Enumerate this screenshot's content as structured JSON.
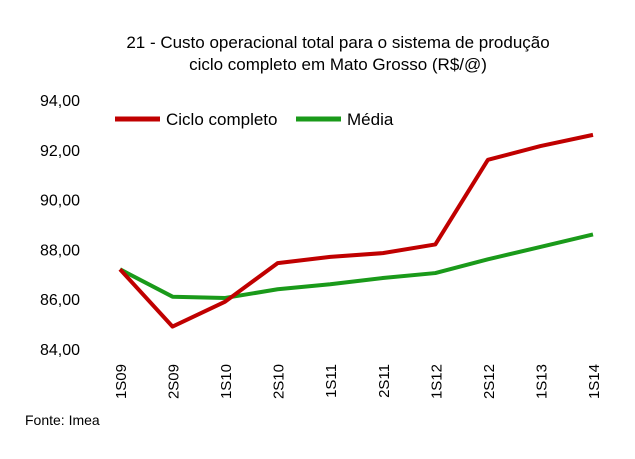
{
  "chart_data": {
    "type": "line",
    "title": [
      "21 - Custo operacional total para o sistema de produção",
      "ciclo completo em Mato Grosso (R$/@)"
    ],
    "xlabel": "",
    "ylabel": "",
    "categories": [
      "1S09",
      "2S09",
      "1S10",
      "2S10",
      "1S11",
      "2S11",
      "1S12",
      "2S12",
      "1S13",
      "1S14"
    ],
    "ylim": [
      84,
      94
    ],
    "yticks": [
      "84,00",
      "86,00",
      "88,00",
      "90,00",
      "92,00",
      "94,00"
    ],
    "ytick_values": [
      84,
      86,
      88,
      90,
      92,
      94
    ],
    "grid": false,
    "legend_position": "top-left",
    "series": [
      {
        "name": "Ciclo completo",
        "color": "#c00000",
        "values": [
          87.2,
          84.9,
          85.9,
          87.45,
          87.7,
          87.85,
          88.2,
          91.6,
          92.15,
          92.6
        ]
      },
      {
        "name": "Média",
        "color": "#1a9a1a",
        "values": [
          87.2,
          86.1,
          86.05,
          86.4,
          86.6,
          86.85,
          87.05,
          87.6,
          88.1,
          88.6
        ]
      }
    ],
    "source": "Fonte: Imea"
  }
}
